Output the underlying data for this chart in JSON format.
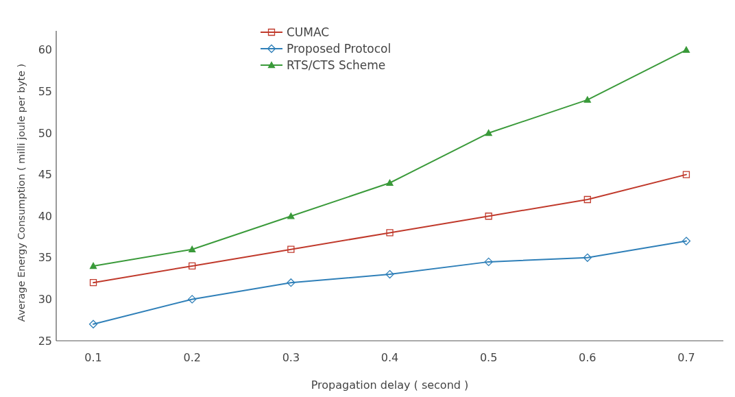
{
  "chart_data": {
    "type": "line",
    "xlabel": "Propagation delay ( second )",
    "ylabel": "Average Energy Consumption ( milli joule per byte )",
    "x": [
      0.1,
      0.2,
      0.3,
      0.4,
      0.5,
      0.6,
      0.7
    ],
    "series": [
      {
        "name": "CUMAC",
        "color": "#c0392b",
        "marker": "square",
        "values": [
          32,
          34,
          36,
          38,
          40,
          42,
          45
        ]
      },
      {
        "name": "Proposed Protocol",
        "color": "#2e7fb8",
        "marker": "diamond",
        "values": [
          27,
          30,
          32,
          33,
          34.5,
          35,
          37
        ]
      },
      {
        "name": "RTS/CTS Scheme",
        "color": "#3a9a3a",
        "marker": "triangle",
        "values": [
          34,
          36,
          40,
          44,
          50,
          54,
          60
        ]
      }
    ],
    "xlim": [
      0.0625,
      0.7375
    ],
    "xticks": [
      0.1,
      0.2,
      0.3,
      0.4,
      0.5,
      0.6,
      0.7
    ],
    "ylim": [
      25,
      62.3
    ],
    "yticks": [
      25,
      30,
      35,
      40,
      45,
      50,
      55,
      60
    ],
    "legend": "top",
    "line_style": "solid"
  }
}
